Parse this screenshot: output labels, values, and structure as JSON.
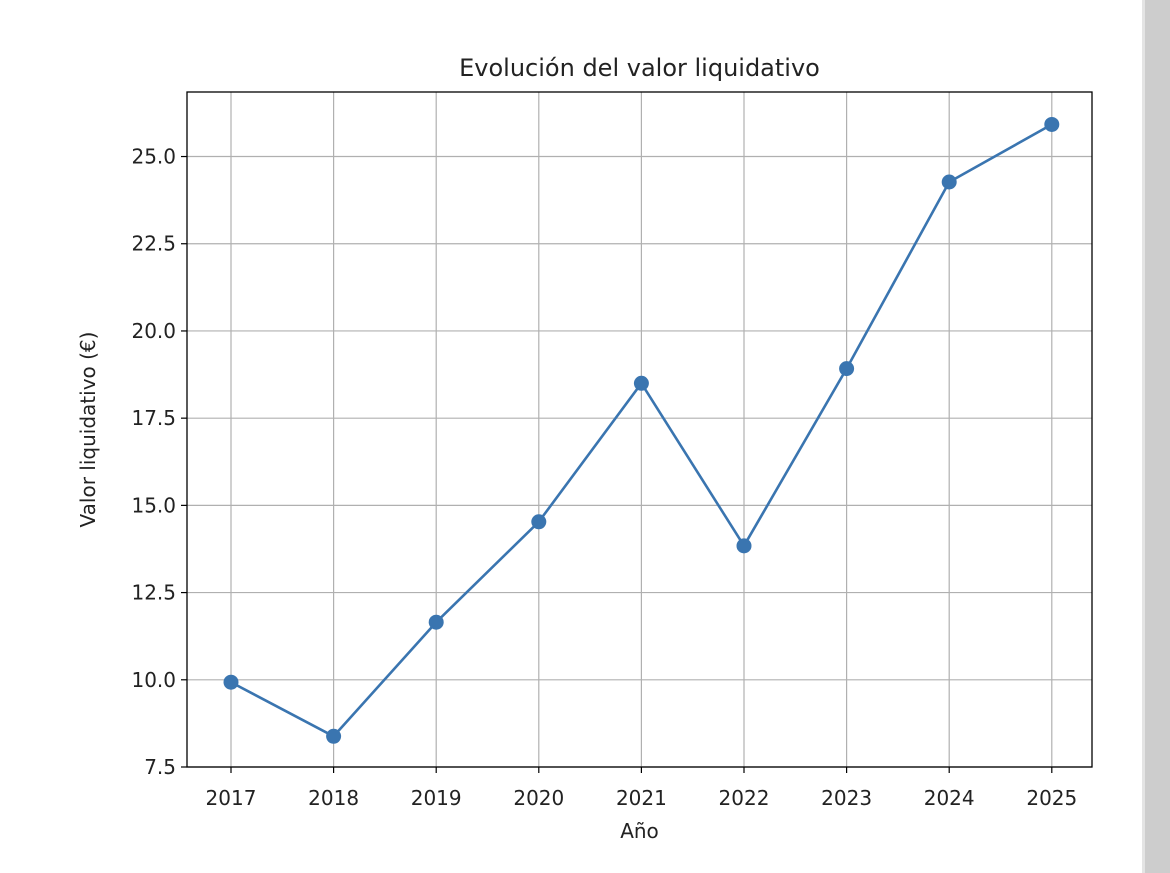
{
  "chart_data": {
    "type": "line",
    "title": "Evolución del valor liquidativo",
    "xlabel": "Año",
    "ylabel": "Valor liquidativo (€)",
    "categories": [
      "2017",
      "2018",
      "2019",
      "2020",
      "2021",
      "2022",
      "2023",
      "2024",
      "2025"
    ],
    "series": [
      {
        "name": "Valor liquidativo",
        "values": [
          9.93,
          8.38,
          11.65,
          14.53,
          18.5,
          13.84,
          18.92,
          24.27,
          25.92
        ],
        "color": "#3a75b0"
      }
    ],
    "ylim": [
      7.5,
      26.85
    ],
    "yticks": [
      7.5,
      10.0,
      12.5,
      15.0,
      17.5,
      20.0,
      22.5,
      25.0
    ],
    "ytick_labels": [
      "7.5",
      "10.0",
      "12.5",
      "15.0",
      "17.5",
      "20.0",
      "22.5",
      "25.0"
    ],
    "grid": true
  }
}
